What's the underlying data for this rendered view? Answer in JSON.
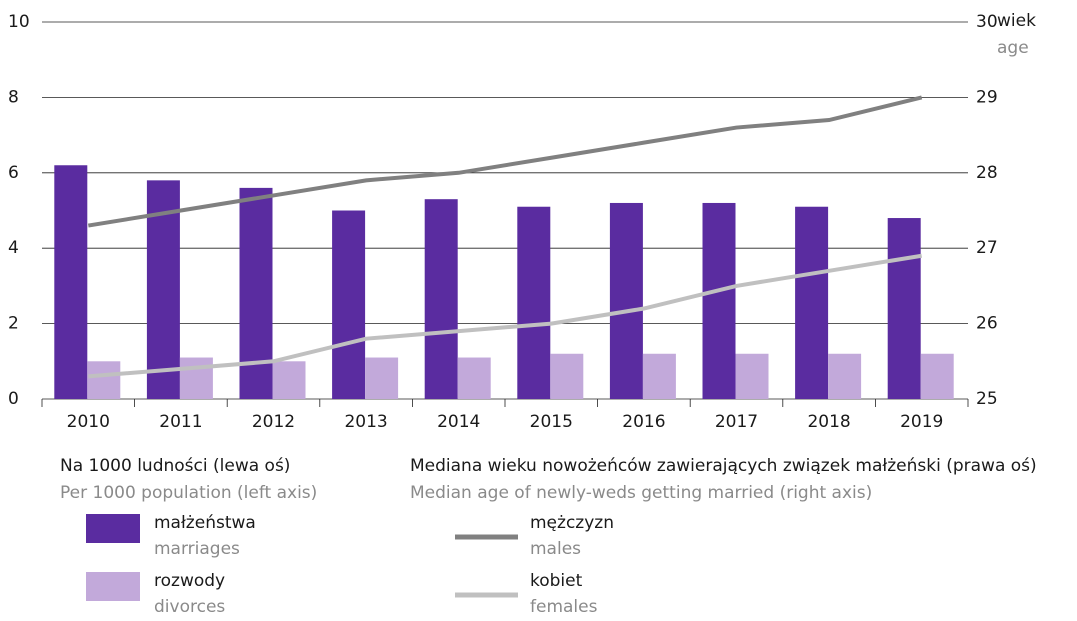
{
  "chart_data": {
    "type": "bar_line",
    "categories": [
      "2010",
      "2011",
      "2012",
      "2013",
      "2014",
      "2015",
      "2016",
      "2017",
      "2018",
      "2019"
    ],
    "ylim": [
      0,
      10
    ],
    "yticks": [
      0,
      2,
      4,
      6,
      8,
      10
    ],
    "y2lim": [
      25,
      30
    ],
    "y2ticks": [
      25,
      26,
      27,
      28,
      29,
      30
    ],
    "y2_label": "wiek",
    "y2_label_en": "age",
    "grid": true,
    "left_group": {
      "label": "Na 1000 ludności (lewa oś)",
      "label_en": "Per 1000 population (left axis)"
    },
    "right_group": {
      "label": "Mediana wieku nowożeńców zawierających związek małżeński (prawa oś)",
      "label_en": "Median age of newly-weds getting married (right axis)"
    },
    "series": [
      {
        "name": "małżeństwa",
        "name_en": "marriages",
        "type": "bar",
        "color": "#5a2ca0",
        "values": [
          6.2,
          5.8,
          5.6,
          5.0,
          5.3,
          5.1,
          5.2,
          5.2,
          5.1,
          4.8
        ]
      },
      {
        "name": "rozwody",
        "name_en": "divorces",
        "type": "bar",
        "color": "#c2a9da",
        "values": [
          1.0,
          1.1,
          1.0,
          1.1,
          1.1,
          1.2,
          1.2,
          1.2,
          1.2,
          1.2
        ]
      },
      {
        "name": "mężczyzn",
        "name_en": "males",
        "type": "line",
        "axis": "y2",
        "color": "#808080",
        "values": [
          27.3,
          27.5,
          27.7,
          27.9,
          28.0,
          28.2,
          28.4,
          28.6,
          28.7,
          29.0
        ]
      },
      {
        "name": "kobiet",
        "name_en": "females",
        "type": "line",
        "axis": "y2",
        "color": "#c0c0c0",
        "values": [
          25.3,
          25.4,
          25.5,
          25.8,
          25.9,
          26.0,
          26.2,
          26.5,
          26.7,
          26.9
        ]
      }
    ]
  }
}
